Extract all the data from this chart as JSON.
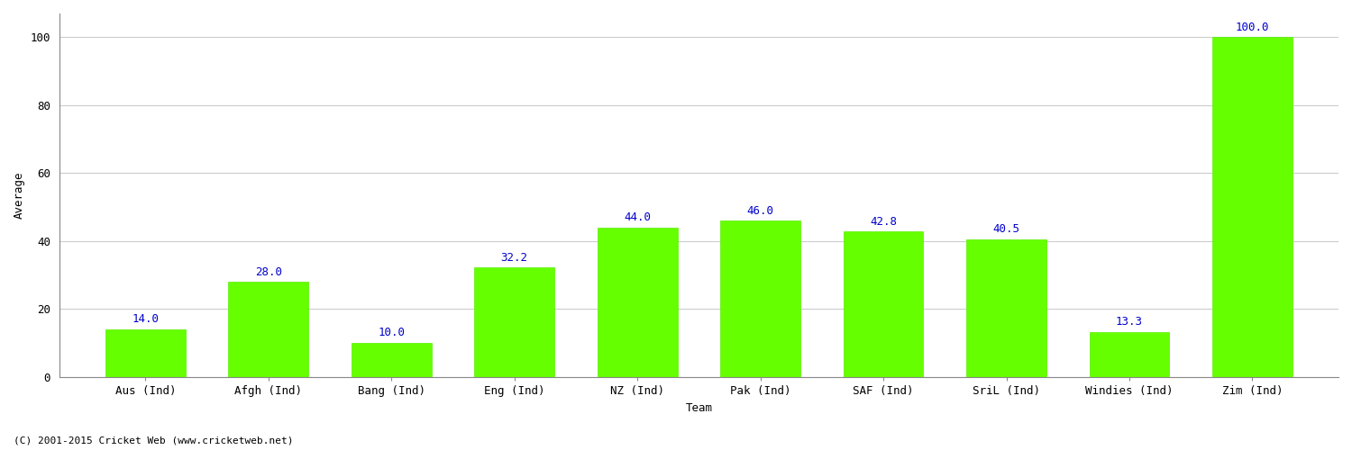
{
  "categories": [
    "Aus (Ind)",
    "Afgh (Ind)",
    "Bang (Ind)",
    "Eng (Ind)",
    "NZ (Ind)",
    "Pak (Ind)",
    "SAF (Ind)",
    "SriL (Ind)",
    "Windies (Ind)",
    "Zim (Ind)"
  ],
  "values": [
    14.0,
    28.0,
    10.0,
    32.2,
    44.0,
    46.0,
    42.8,
    40.5,
    13.3,
    100.0
  ],
  "bar_color": "#66ff00",
  "bar_edge_color": "#55ee00",
  "value_color": "#0000cc",
  "ylabel": "Average",
  "xlabel": "Team",
  "ylim": [
    0,
    107
  ],
  "yticks": [
    0,
    20,
    40,
    60,
    80,
    100
  ],
  "grid_color": "#cccccc",
  "bg_color": "#ffffff",
  "footnote": "(C) 2001-2015 Cricket Web (www.cricketweb.net)",
  "tick_fontsize": 9,
  "value_fontsize": 9,
  "label_fontsize": 9,
  "footnote_fontsize": 8,
  "bar_width": 0.65
}
